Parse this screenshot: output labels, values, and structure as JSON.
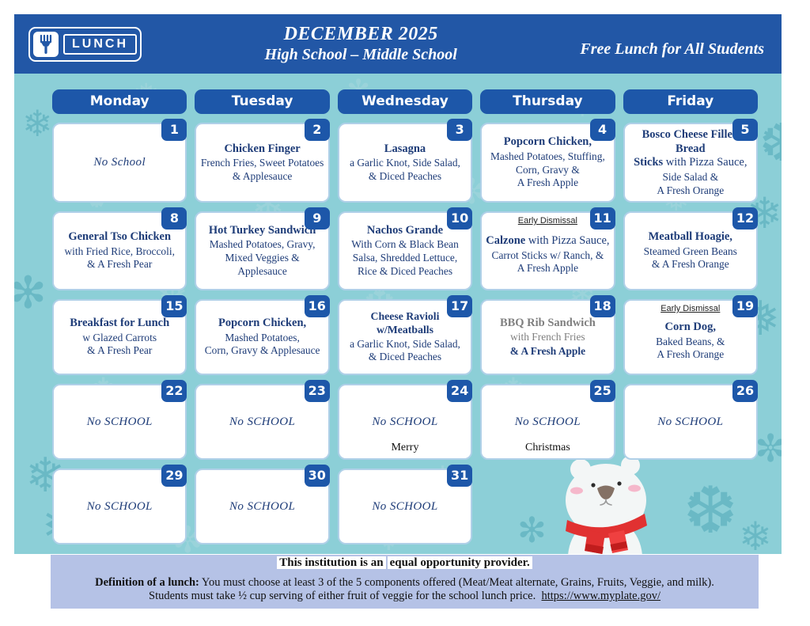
{
  "header": {
    "logo_label": "LUNCH",
    "title": "DECEMBER 2025",
    "subtitle": "High School – Middle School",
    "tagline": "Free Lunch for All Students"
  },
  "weekdays": [
    "Monday",
    "Tuesday",
    "Wednesday",
    "Thursday",
    "Friday"
  ],
  "weeks": [
    [
      {
        "date": "1",
        "note": "No School"
      },
      {
        "date": "2",
        "title": "Chicken Finger",
        "body": "French Fries, Sweet Potatoes\n& Applesauce"
      },
      {
        "date": "3",
        "title": "Lasagna",
        "body": "a Garlic Knot, Side Salad,\n& Diced Peaches"
      },
      {
        "date": "4",
        "title": "Popcorn Chicken,",
        "body": "Mashed Potatoes, Stuffing,\nCorn, Gravy &\nA Fresh Apple"
      },
      {
        "date": "5",
        "t1": "Bosco Cheese Filled Bread",
        "t2b": "Sticks",
        "t2r": " with Pizza Sauce,",
        "body": "Side Salad &\nA Fresh Orange"
      }
    ],
    [
      {
        "date": "8",
        "title": "General Tso Chicken",
        "body": "with Fried Rice, Broccoli,\n& A Fresh Pear"
      },
      {
        "date": "9",
        "title": "Hot Turkey Sandwich",
        "body": "Mashed Potatoes, Gravy,\nMixed Veggies &\nApplesauce"
      },
      {
        "date": "10",
        "title": "Nachos Grande",
        "body": "With Corn & Black Bean\nSalsa, Shredded Lettuce,\nRice & Diced Peaches"
      },
      {
        "date": "11",
        "dismissal": "Early Dismissal",
        "title": "Calzone",
        "title_rest": " with Pizza Sauce,",
        "body": "Carrot Sticks w/ Ranch, &\nA Fresh Apple"
      },
      {
        "date": "12",
        "title": "Meatball Hoagie,",
        "body": "Steamed Green Beans\n& A Fresh Orange"
      }
    ],
    [
      {
        "date": "15",
        "title": "Breakfast for Lunch",
        "body": "w Glazed Carrots\n& A Fresh Pear"
      },
      {
        "date": "16",
        "title": "Popcorn Chicken,",
        "body": "Mashed Potatoes,\nCorn, Gravy & Applesauce"
      },
      {
        "date": "17",
        "title": "Cheese Ravioli w/Meatballs",
        "body": "a Garlic Knot, Side Salad,\n& Diced Peaches"
      },
      {
        "date": "18",
        "gray_title": "BBQ Rib Sandwich",
        "gray_body": "with French Fries",
        "navy_body": "& A Fresh Apple"
      },
      {
        "date": "19",
        "dismissal": "Early Dismissal",
        "title": "Corn Dog,",
        "body": "Baked Beans, &\nA Fresh Orange"
      }
    ],
    [
      {
        "date": "22",
        "note": "No SCHOOL"
      },
      {
        "date": "23",
        "note": "No SCHOOL"
      },
      {
        "date": "24",
        "note": "No SCHOOL",
        "extra": "Merry"
      },
      {
        "date": "25",
        "note": "No SCHOOL",
        "extra": "Christmas"
      },
      {
        "date": "26",
        "note": "No SCHOOL"
      }
    ],
    [
      {
        "date": "29",
        "note": "No SCHOOL"
      },
      {
        "date": "30",
        "note": "No SCHOOL"
      },
      {
        "date": "31",
        "note": "No SCHOOL"
      }
    ]
  ],
  "footer": {
    "provider1": "This institution is an",
    "provider2": "equal opportunity provider.",
    "def_label": "Definition of a lunch:",
    "def_text": " You must choose at least 3 of the 5 components offered (Meat/Meat alternate, Grains, Fruits, Veggie, and milk).",
    "def_line2": "Students must take ½ cup serving of either fruit of veggie for the school lunch price.  ",
    "link": "https://www.myplate.gov/"
  },
  "colors": {
    "header_blue": "#2257a6",
    "badge_blue": "#1d57a9",
    "teal_bg": "#8ccfd7",
    "lavender": "#b5c2e6",
    "navy_text": "#1e3c78",
    "scarf_red": "#e13131"
  }
}
